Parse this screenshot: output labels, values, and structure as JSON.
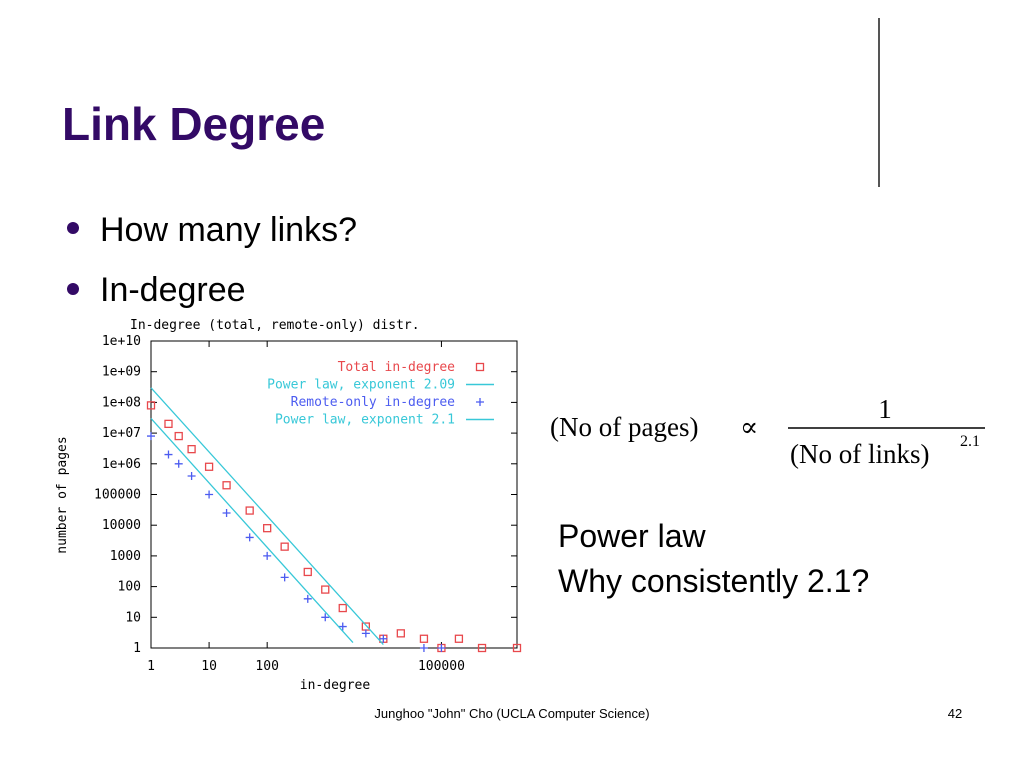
{
  "slide": {
    "title": "Link Degree",
    "bullets": [
      "How many links?",
      "In-degree"
    ],
    "formula": {
      "left": "(No of pages)",
      "symbol": "∝",
      "numerator": "1",
      "denominator": "(No of links)",
      "exponent": "2.1"
    },
    "notes": [
      "Power law",
      "Why consistently 2.1?"
    ],
    "footer": "Junghoo \"John\" Cho (UCLA Computer Science)",
    "page_number": "42"
  },
  "chart_data": {
    "type": "scatter",
    "title": "In-degree (total, remote-only) distr.",
    "x_label": "in-degree",
    "y_label": "number of pages",
    "log_x": true,
    "log_y": true,
    "xlim": [
      1,
      2000000
    ],
    "ylim": [
      1,
      10000000000
    ],
    "xticks": [
      1,
      10,
      100,
      100000
    ],
    "yticks": [
      1,
      10,
      100,
      1000,
      10000,
      100000,
      {
        "value": 1000000,
        "label": "1e+06"
      },
      {
        "value": 10000000,
        "label": "1e+07"
      },
      {
        "value": 100000000,
        "label": "1e+08"
      },
      {
        "value": 1000000000,
        "label": "1e+09"
      },
      {
        "value": 10000000000,
        "label": "1e+10"
      }
    ],
    "legend": "upper right",
    "series": [
      {
        "name": "Total in-degree",
        "color": "#e8484c",
        "marker": "square",
        "x": [
          1,
          2,
          3,
          5,
          10,
          20,
          50,
          100,
          200,
          500,
          1000,
          2000,
          5000,
          10000,
          20000,
          50000,
          100000,
          200000,
          500000,
          2000000
        ],
        "values": [
          80000000,
          20000000,
          8000000,
          3000000,
          800000,
          200000,
          30000,
          8000,
          2000,
          300,
          80,
          20,
          5,
          2,
          3,
          2,
          1,
          2,
          1,
          1
        ]
      },
      {
        "name": "Power law, exponent 2.09",
        "color": "#38c8d8",
        "marker": "line",
        "x": [
          1,
          10000
        ],
        "values": [
          300000000,
          1.3
        ]
      },
      {
        "name": "Remote-only in-degree",
        "color": "#4c5cf0",
        "marker": "plus",
        "x": [
          1,
          2,
          3,
          5,
          10,
          20,
          50,
          100,
          200,
          500,
          1000,
          2000,
          5000,
          10000,
          50000,
          100000
        ],
        "values": [
          8000000,
          2000000,
          1000000,
          400000,
          100000,
          25000,
          4000,
          1000,
          200,
          40,
          10,
          5,
          3,
          2,
          1,
          1
        ]
      },
      {
        "name": "Power law, exponent 2.1",
        "color": "#38c8d8",
        "marker": "line",
        "x": [
          1,
          3000
        ],
        "values": [
          30000000,
          1.5
        ]
      }
    ]
  }
}
